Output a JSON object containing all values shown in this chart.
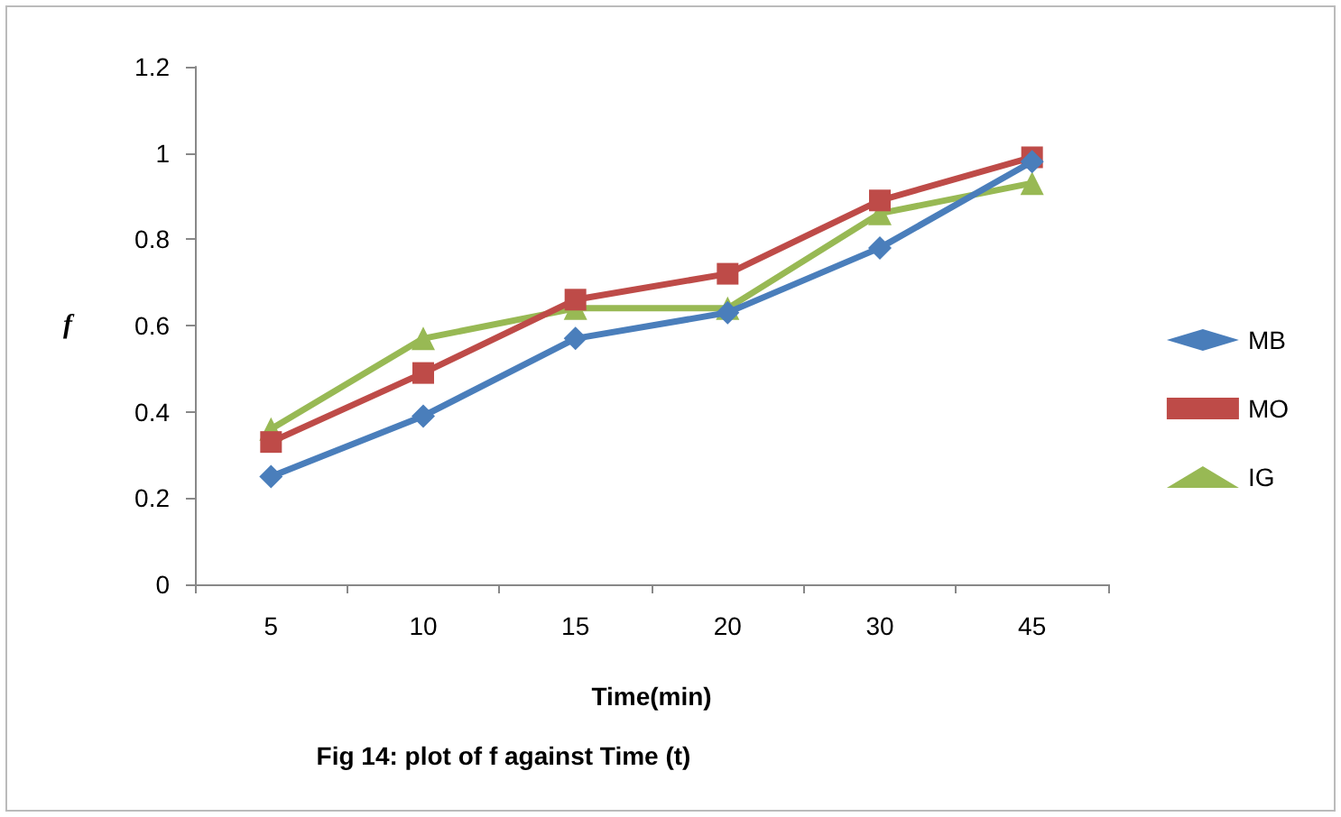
{
  "chart_data": {
    "type": "line",
    "title": "Fig 14: plot of f against Time (t)",
    "xlabel": "Time(min)",
    "ylabel": "f",
    "categories": [
      "5",
      "10",
      "15",
      "20",
      "30",
      "45"
    ],
    "series": [
      {
        "name": "MB",
        "color": "#4a7ebb",
        "marker": "diamond",
        "values": [
          0.25,
          0.39,
          0.57,
          0.63,
          0.78,
          0.98
        ]
      },
      {
        "name": "MO",
        "color": "#be4b48",
        "marker": "square",
        "values": [
          0.33,
          0.49,
          0.66,
          0.72,
          0.89,
          0.99
        ]
      },
      {
        "name": "IG",
        "color": "#98b954",
        "marker": "triangle",
        "values": [
          0.36,
          0.57,
          0.64,
          0.64,
          0.86,
          0.93
        ]
      }
    ],
    "ylim": [
      0,
      1.2
    ],
    "yticks": [
      0,
      0.2,
      0.4,
      0.6,
      0.8,
      1,
      1.2
    ],
    "grid": false,
    "legend": "right",
    "line_style": "solid"
  }
}
